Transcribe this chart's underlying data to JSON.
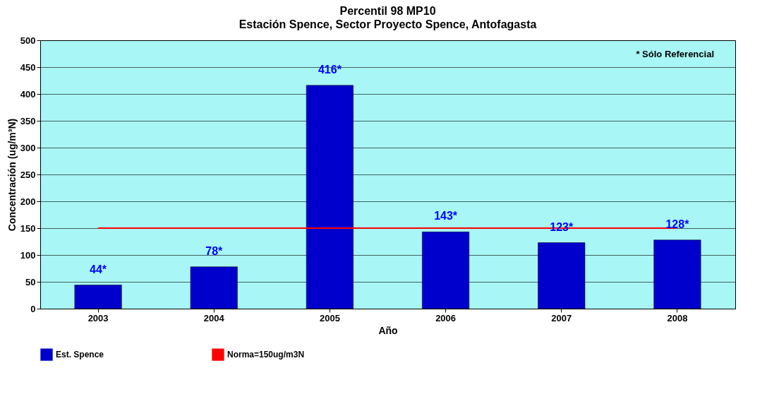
{
  "chart_data": {
    "type": "bar",
    "title": "Percentil 98 MP10",
    "subtitle": "Estación Spence, Sector Proyecto Spence, Antofagasta",
    "xlabel": "Año",
    "ylabel": "Concentración (ug/m³N)",
    "categories": [
      "2003",
      "2004",
      "2005",
      "2006",
      "2007",
      "2008"
    ],
    "series": [
      {
        "name": "Est. Spence",
        "color": "#0000cc",
        "values": [
          44,
          78,
          416,
          143,
          123,
          128
        ],
        "value_labels": [
          "44*",
          "78*",
          "416*",
          "143*",
          "123*",
          "128*"
        ]
      },
      {
        "name": "Norma=150ug/m3N",
        "type": "line",
        "color": "#ff0000",
        "values": [
          150,
          150,
          150,
          150,
          150,
          150
        ]
      }
    ],
    "ylim": [
      0,
      500
    ],
    "yticks": [
      0,
      50,
      100,
      150,
      200,
      250,
      300,
      350,
      400,
      450,
      500
    ],
    "grid": "y",
    "legend": "bottom",
    "marker": "none",
    "annotations": [
      "* Sólo Referencial"
    ]
  }
}
